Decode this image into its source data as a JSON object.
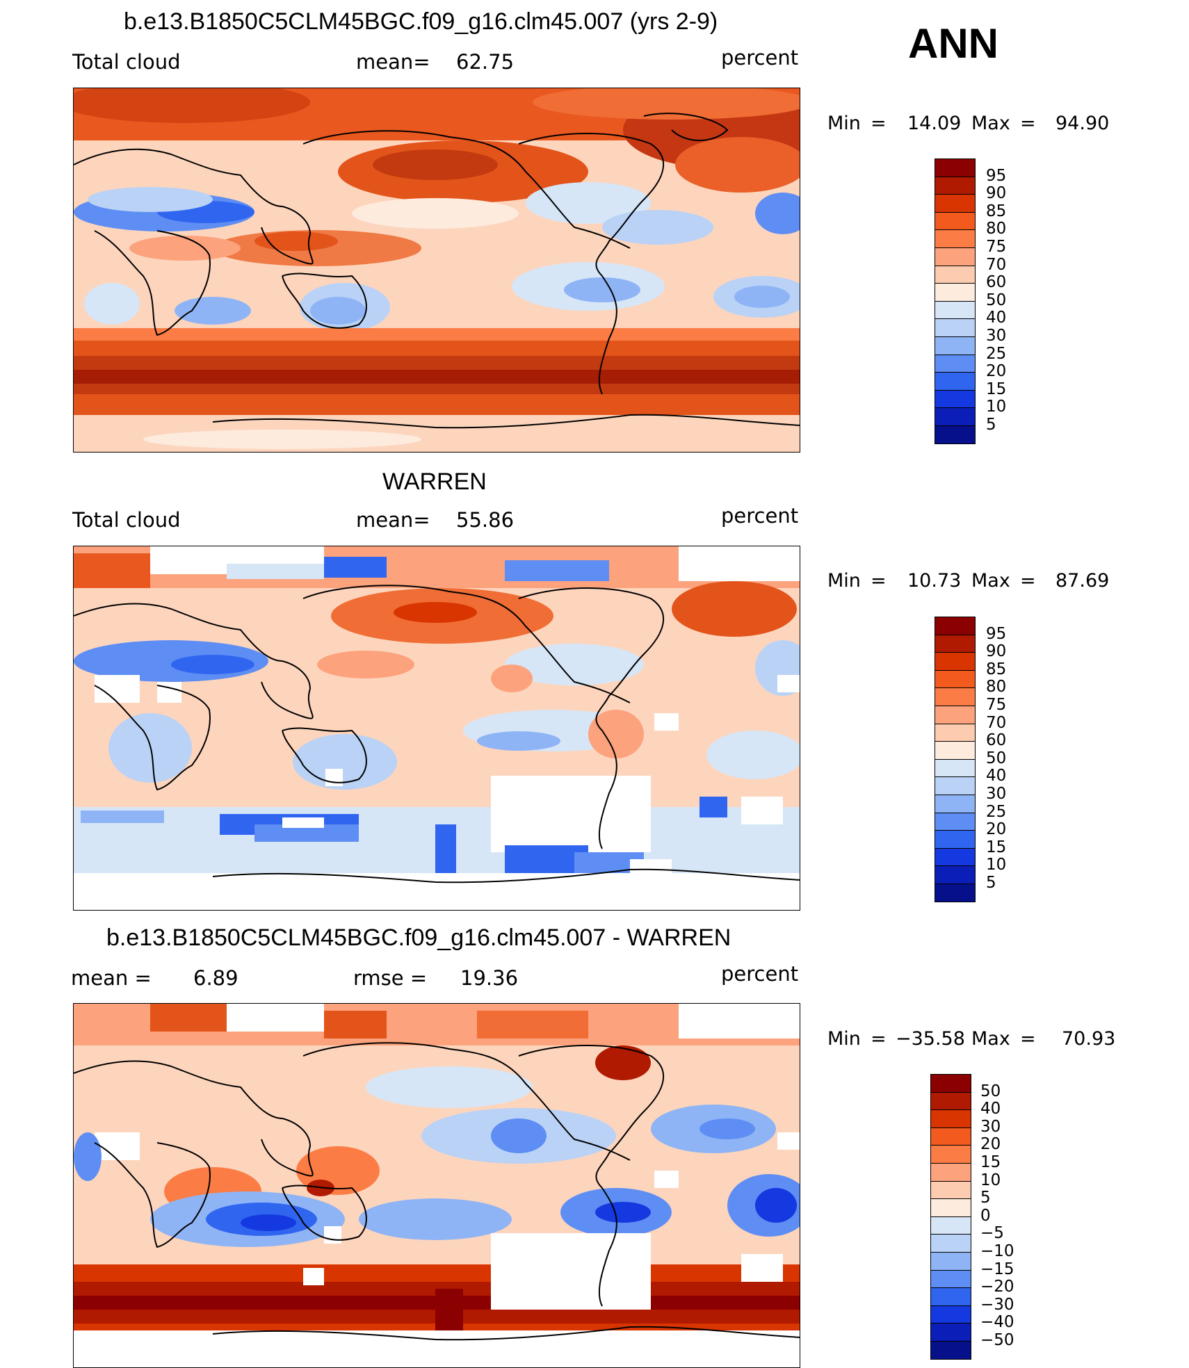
{
  "season": "ANN",
  "panels": [
    {
      "title": "b.e13.B1850C5CLM45BGC.f09_g16.clm45.007 (yrs 2-9)",
      "left_label": "Total cloud",
      "center_label": "mean=",
      "center_value": "62.75",
      "units": "percent",
      "min_label": "Min",
      "min_value": "14.09",
      "max_label": "Max",
      "max_value": "94.90",
      "eq1": "=",
      "eq2": "="
    },
    {
      "title": "WARREN",
      "left_label": "Total cloud",
      "center_label": "mean=",
      "center_value": "55.86",
      "units": "percent",
      "min_label": "Min",
      "min_value": "10.73",
      "max_label": "Max",
      "max_value": "87.69",
      "eq1": "=",
      "eq2": "="
    },
    {
      "title": "b.e13.B1850C5CLM45BGC.f09_g16.clm45.007 - WARREN",
      "left_label": "mean =",
      "left_value": "6.89",
      "center_label": "rmse =",
      "center_value": "19.36",
      "units": "percent",
      "min_label": "Min",
      "min_value": "−35.58",
      "max_label": "Max",
      "max_value": "70.93",
      "eq1": "=",
      "eq2": "="
    }
  ],
  "colorbar_abs": {
    "labels": [
      "95",
      "90",
      "85",
      "80",
      "75",
      "70",
      "60",
      "50",
      "40",
      "30",
      "25",
      "20",
      "15",
      "10",
      "5"
    ],
    "colors": [
      "#8b0000",
      "#b01a00",
      "#d93500",
      "#f25a1e",
      "#fb7d45",
      "#fca27c",
      "#fdccb0",
      "#fdebdd",
      "#d6e6f7",
      "#b9d2f6",
      "#8fb4f5",
      "#5e8ef3",
      "#3065f0",
      "#1439e0",
      "#0b1fb8",
      "#06108a"
    ]
  },
  "colorbar_diff": {
    "labels": [
      "50",
      "40",
      "30",
      "20",
      "15",
      "10",
      "5",
      "0",
      "−5",
      "−10",
      "−15",
      "−20",
      "−30",
      "−40",
      "−50"
    ],
    "colors": [
      "#8b0000",
      "#b01a00",
      "#d93500",
      "#f25a1e",
      "#fb7d45",
      "#fca27c",
      "#fdccb0",
      "#fdebdd",
      "#d6e6f7",
      "#b9d2f6",
      "#8fb4f5",
      "#5e8ef3",
      "#3065f0",
      "#1439e0",
      "#0b1fb8",
      "#06108a"
    ]
  }
}
